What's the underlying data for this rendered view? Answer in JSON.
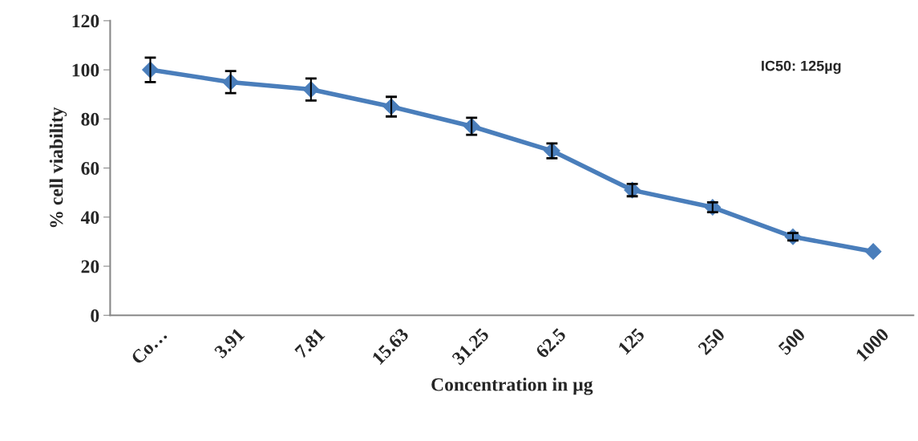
{
  "chart_data": {
    "type": "line",
    "xlabel": "Concentration in µg",
    "ylabel": "% cell viability",
    "categories": [
      "Co…",
      "3.91",
      "7.81",
      "15.63",
      "31.25",
      "62.5",
      "125",
      "250",
      "500",
      "1000"
    ],
    "series": [
      {
        "color": "#4a7ebb",
        "values": [
          100,
          95,
          92,
          85,
          77,
          67,
          51,
          44,
          32,
          26
        ],
        "errors": [
          5,
          4.5,
          4.5,
          4,
          3.5,
          3,
          2.5,
          2,
          1.5,
          null
        ]
      }
    ],
    "ylim": [
      0,
      120
    ],
    "yticks": [
      0,
      20,
      40,
      60,
      80,
      100,
      120
    ],
    "marker": "diamond",
    "line_style": "solid",
    "grid": false,
    "legend": false,
    "annotations": [
      "IC50: 125µg"
    ]
  }
}
